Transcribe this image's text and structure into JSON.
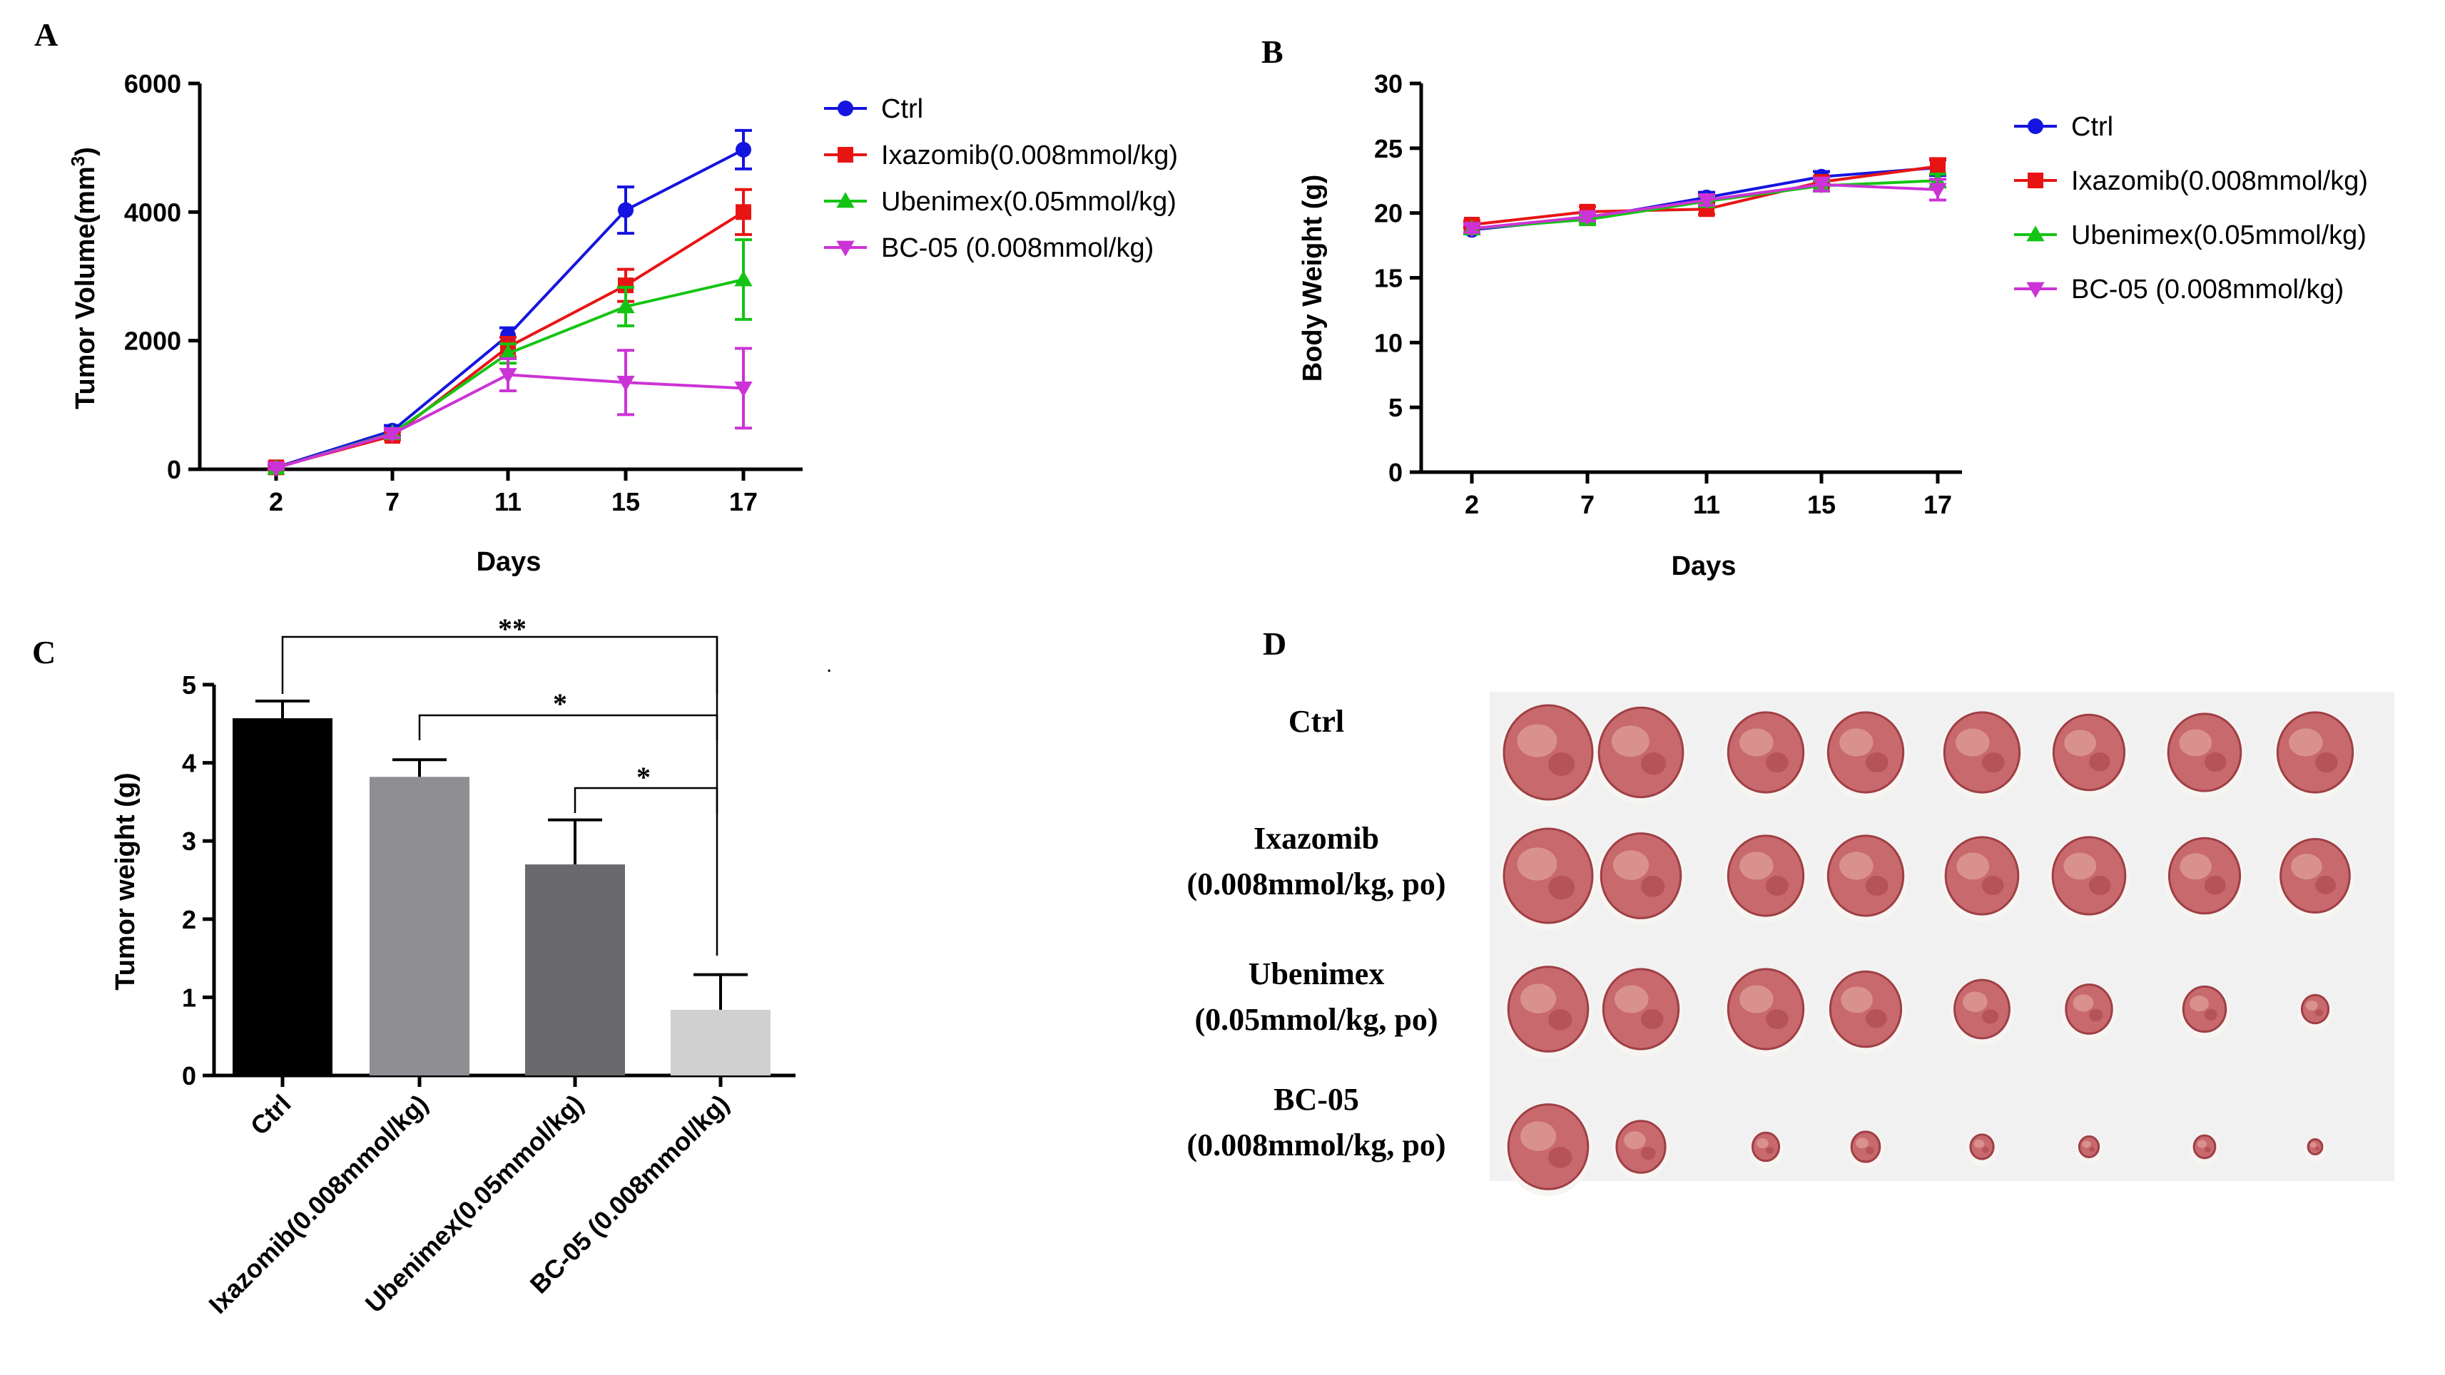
{
  "panels": {
    "A": "A",
    "B": "B",
    "C": "C",
    "D": "D"
  },
  "chart_data": [
    {
      "panel": "A",
      "type": "line",
      "title": "",
      "xlabel": "Days",
      "ylabel": "Tumor Volume(mm",
      "ylabel_sup": "3",
      "ylabel_close": ")",
      "x": [
        2,
        7,
        11,
        15,
        17
      ],
      "xticks": [
        "2",
        "7",
        "11",
        "15",
        "17"
      ],
      "yticks": [
        "0",
        "2000",
        "4000",
        "6000"
      ],
      "ylim": [
        0,
        6000
      ],
      "legend_position": "right",
      "series": [
        {
          "name": "Ctrl",
          "color": "#1414e0",
          "marker": "circle",
          "values": [
            30,
            600,
            2080,
            4030,
            4970
          ],
          "errors": [
            40,
            80,
            120,
            360,
            300
          ]
        },
        {
          "name": "Ixazomib(0.008mmol/kg)",
          "color": "#e81414",
          "marker": "square",
          "values": [
            30,
            520,
            1900,
            2860,
            4000
          ],
          "errors": [
            40,
            60,
            150,
            250,
            350
          ]
        },
        {
          "name": "Ubenimex(0.05mmol/kg)",
          "color": "#14c414",
          "marker": "triangle-up",
          "values": [
            20,
            560,
            1800,
            2530,
            2950
          ],
          "errors": [
            40,
            60,
            150,
            300,
            620
          ]
        },
        {
          "name": "BC-05 (0.008mmol/kg)",
          "color": "#cc33d6",
          "marker": "triangle-down",
          "values": [
            20,
            550,
            1470,
            1350,
            1260
          ],
          "errors": [
            40,
            60,
            250,
            500,
            620
          ]
        }
      ]
    },
    {
      "panel": "B",
      "type": "line",
      "title": "",
      "xlabel": "Days",
      "ylabel": "Body Weight (g)",
      "x": [
        2,
        7,
        11,
        15,
        17
      ],
      "xticks": [
        "2",
        "7",
        "11",
        "15",
        "17"
      ],
      "yticks": [
        "0",
        "5",
        "10",
        "15",
        "20",
        "25",
        "30"
      ],
      "ylim": [
        0,
        30
      ],
      "legend_position": "right",
      "series": [
        {
          "name": "Ctrl",
          "color": "#1414e0",
          "marker": "circle",
          "values": [
            18.7,
            19.6,
            21.2,
            22.8,
            23.5
          ],
          "errors": [
            0.3,
            0.3,
            0.4,
            0.4,
            0.6
          ]
        },
        {
          "name": "Ixazomib(0.008mmol/kg)",
          "color": "#e81414",
          "marker": "square",
          "values": [
            19.1,
            20.1,
            20.3,
            22.4,
            23.6
          ],
          "errors": [
            0.3,
            0.4,
            0.4,
            0.4,
            0.6
          ]
        },
        {
          "name": "Ubenimex(0.05mmol/kg)",
          "color": "#14c414",
          "marker": "triangle-up",
          "values": [
            18.8,
            19.5,
            20.9,
            22.1,
            22.5
          ],
          "errors": [
            0.3,
            0.3,
            0.4,
            0.4,
            0.5
          ]
        },
        {
          "name": "BC-05 (0.008mmol/kg)",
          "color": "#cc33d6",
          "marker": "triangle-down",
          "values": [
            18.8,
            19.7,
            21.0,
            22.2,
            21.8
          ],
          "errors": [
            0.3,
            0.3,
            0.4,
            0.5,
            0.8
          ]
        }
      ]
    },
    {
      "panel": "C",
      "type": "bar",
      "title": "",
      "xlabel": "",
      "ylabel": "Tumor weight (g)",
      "categories": [
        "Ctrl",
        "Ixazomib(0.008mmol/kg)",
        "Ubenimex(0.05mmol/kg)",
        "BC-05 (0.008mmol/kg)"
      ],
      "values": [
        4.57,
        3.82,
        2.7,
        0.84
      ],
      "errors": [
        0.22,
        0.22,
        0.57,
        0.45
      ],
      "colors": [
        "#000000",
        "#8e8e93",
        "#6a6a6c",
        "#d0d0d0"
      ],
      "yticks": [
        "0",
        "1",
        "2",
        "3",
        "4",
        "5"
      ],
      "ylim": [
        0,
        5
      ],
      "significance": [
        {
          "from": "Ctrl",
          "to": "BC-05 (0.008mmol/kg)",
          "label": "**"
        },
        {
          "from": "Ixazomib(0.008mmol/kg)",
          "to": "BC-05 (0.008mmol/kg)",
          "label": "*"
        },
        {
          "from": "Ubenimex(0.05mmol/kg)",
          "to": "BC-05 (0.008mmol/kg)",
          "label": "*"
        }
      ]
    }
  ],
  "panel_d": {
    "rows": [
      {
        "label_lines": [
          "Ctrl"
        ],
        "tumor_sizes": [
          1.0,
          0.95,
          0.85,
          0.85,
          0.85,
          0.8,
          0.82,
          0.85
        ]
      },
      {
        "label_lines": [
          "Ixazomib",
          "(0.008mmol/kg, po)"
        ],
        "tumor_sizes": [
          1.0,
          0.9,
          0.85,
          0.85,
          0.82,
          0.82,
          0.8,
          0.78
        ]
      },
      {
        "label_lines": [
          "Ubenimex",
          "(0.05mmol/kg, po)"
        ],
        "tumor_sizes": [
          0.9,
          0.85,
          0.85,
          0.8,
          0.62,
          0.52,
          0.48,
          0.3
        ]
      },
      {
        "label_lines": [
          "BC-05",
          "(0.008mmol/kg, po)"
        ],
        "tumor_sizes": [
          0.9,
          0.55,
          0.3,
          0.32,
          0.26,
          0.22,
          0.24,
          0.16
        ]
      }
    ]
  }
}
